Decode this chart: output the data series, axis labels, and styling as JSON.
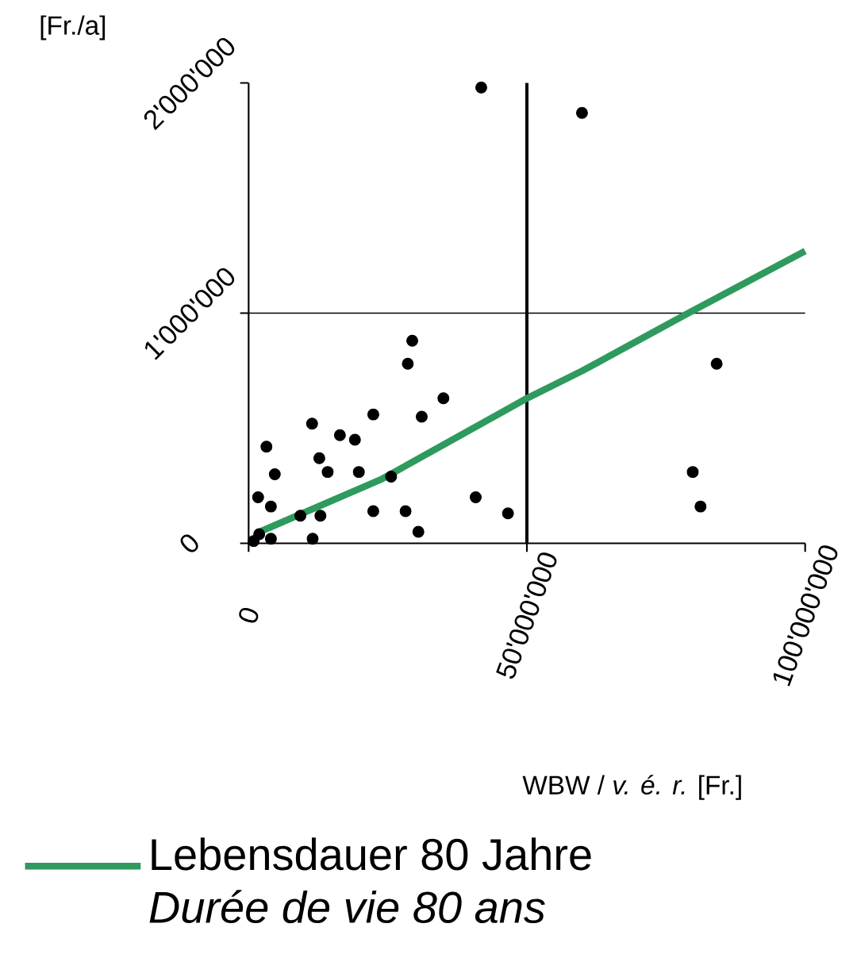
{
  "chart_data": {
    "type": "scatter",
    "xlabel": "WBW / *v. é. r.* [Fr.]",
    "ylabel": "[Fr./a]",
    "xlim": [
      0,
      100000000
    ],
    "ylim": [
      0,
      2000000
    ],
    "xticks": [
      0,
      {
        "value": 50000000,
        "label": "50'000'000"
      },
      {
        "value": 100000000,
        "label": "100'000'000"
      }
    ],
    "yticks": [
      0,
      {
        "value": 1000000,
        "label": "1'000'000"
      },
      {
        "value": 2000000,
        "label": "2'000'000"
      }
    ],
    "legend": "bottom",
    "ref_lines": [
      {
        "axis": "x",
        "value": 50000000,
        "color": "#000000",
        "line_style": "solid"
      },
      {
        "axis": "y",
        "value": 1000000,
        "color": "#000000",
        "line_style": "solid"
      }
    ],
    "series": [
      {
        "color": "#000000",
        "marker": "circle",
        "x": [
          41800000,
          59900000,
          29400000,
          28600000,
          35000000,
          22400000,
          31100000,
          11400000,
          3200000,
          16400000,
          19100000,
          12700000,
          4700000,
          14200000,
          19800000,
          25600000,
          1700000,
          4000000,
          9300000,
          12900000,
          22400000,
          28200000,
          40800000,
          46600000,
          30500000,
          11500000,
          1900000,
          4000000,
          900000,
          84100000,
          79800000,
          81200000
        ],
        "values": [
          1980000,
          1870000,
          880000,
          780000,
          630000,
          560000,
          550000,
          520000,
          420000,
          470000,
          450000,
          370000,
          300000,
          310000,
          310000,
          290000,
          200000,
          160000,
          120000,
          120000,
          140000,
          140000,
          200000,
          130000,
          50000,
          20000,
          40000,
          20000,
          10000,
          780000,
          310000,
          160000
        ]
      },
      {
        "type": "line",
        "name": "Lebensdauer 80 Jahre *Durée de vie 80 ans*",
        "color": "#2e9a5e",
        "marker": "none",
        "line_style": "solid",
        "x": [
          2000000,
          24000000,
          50000000,
          60000000,
          79000000,
          100000000
        ],
        "values": [
          50000,
          280000,
          630000,
          750000,
          1000000,
          1270000
        ]
      }
    ]
  }
}
